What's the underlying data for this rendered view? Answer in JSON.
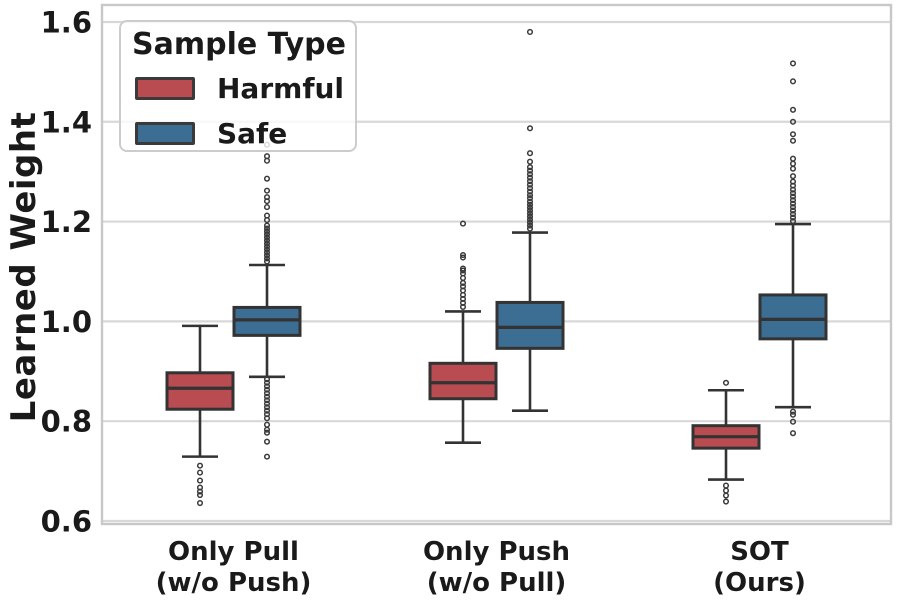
{
  "chart_data": {
    "type": "boxplot",
    "title": "",
    "ylabel": "Learned Weight",
    "xlabel": "",
    "ylim": [
      0.594,
      1.634
    ],
    "yticks": [
      0.6,
      0.8,
      1.0,
      1.2,
      1.4,
      1.6
    ],
    "grid": true,
    "categories": [
      [
        "Only Pull",
        "(w/o Push)"
      ],
      [
        "Only Push",
        "(w/o Pull)"
      ],
      [
        "SOT",
        "(Ours)"
      ]
    ],
    "legend": {
      "title": "Sample Type",
      "position": "upper left",
      "entries": [
        {
          "label": "Harmful",
          "color": "#b84c50"
        },
        {
          "label": "Safe",
          "color": "#3c6d92"
        }
      ]
    },
    "colors": {
      "harmful_fill": "#b84c50",
      "safe_fill": "#3c6d92",
      "box_edge": "#333333",
      "gridline": "#d8d8d8",
      "spine": "#c8c8c8",
      "text": "#1a1a1a",
      "flier": "#3a3a3a"
    },
    "series": [
      {
        "name": "Harmful",
        "color": "#b84c50",
        "boxes": [
          {
            "whislo": 0.729,
            "q1": 0.824,
            "med": 0.866,
            "q3": 0.897,
            "whishi": 0.991,
            "fliers": [
              0.711,
              0.697,
              0.681,
              0.667,
              0.659,
              0.652,
              0.636
            ]
          },
          {
            "whislo": 0.757,
            "q1": 0.845,
            "med": 0.877,
            "q3": 0.916,
            "whishi": 1.02,
            "fliers": [
              1.196,
              1.133,
              1.128,
              1.106,
              1.102,
              1.096,
              1.087,
              1.077,
              1.07,
              1.062,
              1.053,
              1.045,
              1.037,
              1.029
            ]
          },
          {
            "whislo": 0.683,
            "q1": 0.746,
            "med": 0.769,
            "q3": 0.791,
            "whishi": 0.862,
            "fliers": [
              0.877,
              0.671,
              0.661,
              0.651,
              0.639
            ]
          }
        ]
      },
      {
        "name": "Safe",
        "color": "#3c6d92",
        "boxes": [
          {
            "whislo": 0.889,
            "q1": 0.972,
            "med": 1.003,
            "q3": 1.028,
            "whishi": 1.113,
            "fliers": [
              1.354,
              1.331,
              1.322,
              1.286,
              1.262,
              1.249,
              1.241,
              1.229,
              1.212,
              1.203,
              1.192,
              1.186,
              1.18,
              1.174,
              1.168,
              1.162,
              1.156,
              1.15,
              1.144,
              1.138,
              1.132,
              1.126,
              1.12,
              0.884,
              0.877,
              0.87,
              0.863,
              0.856,
              0.849,
              0.842,
              0.835,
              0.828,
              0.821,
              0.814,
              0.806,
              0.793,
              0.783,
              0.777,
              0.759,
              0.729
            ]
          },
          {
            "whislo": 0.821,
            "q1": 0.946,
            "med": 0.988,
            "q3": 1.038,
            "whishi": 1.178,
            "fliers": [
              1.58,
              1.387,
              1.337,
              1.32,
              1.309,
              1.302,
              1.295,
              1.288,
              1.281,
              1.274,
              1.267,
              1.26,
              1.253,
              1.247,
              1.24,
              1.234,
              1.228,
              1.222,
              1.216,
              1.21,
              1.204,
              1.198,
              1.192,
              1.186
            ]
          },
          {
            "whislo": 0.828,
            "q1": 0.965,
            "med": 1.004,
            "q3": 1.053,
            "whishi": 1.195,
            "fliers": [
              1.517,
              1.481,
              1.424,
              1.4,
              1.375,
              1.362,
              1.326,
              1.316,
              1.306,
              1.291,
              1.28,
              1.272,
              1.264,
              1.257,
              1.25,
              1.243,
              1.236,
              1.229,
              1.222,
              1.215,
              1.208,
              1.201,
              0.819,
              0.813,
              0.799,
              0.776
            ]
          }
        ]
      }
    ]
  }
}
